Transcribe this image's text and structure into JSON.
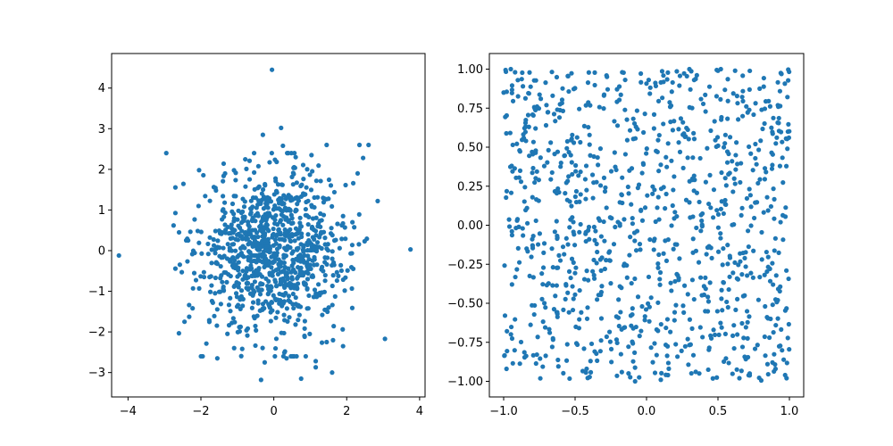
{
  "chart_data": [
    {
      "type": "scatter",
      "title": "",
      "xlabel": "",
      "ylabel": "",
      "xlim": [
        -4.45,
        4.15
      ],
      "ylim": [
        -3.6,
        4.85
      ],
      "xticks": [
        -4,
        -2,
        0,
        2,
        4
      ],
      "xtick_labels": [
        "−4",
        "−2",
        "0",
        "2",
        "4"
      ],
      "yticks": [
        -3,
        -2,
        -1,
        0,
        1,
        2,
        3,
        4
      ],
      "ytick_labels": [
        "−3",
        "−2",
        "−1",
        "0",
        "1",
        "2",
        "3",
        "4"
      ],
      "grid": false,
      "color": "#1f77b4",
      "distribution": "normal",
      "sample_size": 1000,
      "series": [
        {
          "x": [
            -0.05,
            -4.25,
            3.75,
            -2.95,
            0.2,
            -0.3,
            3.05,
            2.85,
            2.35,
            2.6,
            0.25,
            -0.35,
            0.75,
            1.9,
            2.45,
            -2.75,
            -2.6,
            -2.35,
            1.6,
            1.9,
            0.35,
            1.15,
            2.3,
            1.45,
            -0.25,
            0.6,
            1.45,
            1.15,
            -1.55,
            -2.05,
            -2.45
          ],
          "y": [
            4.45,
            -0.12,
            0.03,
            2.4,
            3.02,
            2.85,
            -2.17,
            1.22,
            2.6,
            2.6,
            2.58,
            -3.18,
            -3.15,
            -2.35,
            2.28,
            0.62,
            0.45,
            0.25,
            -3.0,
            0.85,
            -2.65,
            -2.72,
            1.9,
            -2.25,
            -2.75,
            2.3,
            2.6,
            -2.87,
            -2.65,
            1.98,
            -1.75
          ]
        }
      ]
    },
    {
      "type": "scatter",
      "title": "",
      "xlabel": "",
      "ylabel": "",
      "xlim": [
        -1.1,
        1.1
      ],
      "ylim": [
        -1.1,
        1.1
      ],
      "xticks": [
        -1.0,
        -0.5,
        0.0,
        0.5,
        1.0
      ],
      "xtick_labels": [
        "−1.0",
        "−0.5",
        "0.0",
        "0.5",
        "1.0"
      ],
      "yticks": [
        -1.0,
        -0.75,
        -0.5,
        -0.25,
        0.0,
        0.25,
        0.5,
        0.75,
        1.0
      ],
      "ytick_labels": [
        "−1.00",
        "−0.75",
        "−0.50",
        "−0.25",
        "0.00",
        "0.25",
        "0.50",
        "0.75",
        "1.00"
      ],
      "grid": false,
      "color": "#1f77b4",
      "distribution": "uniform",
      "sample_size": 1000,
      "series": [
        {
          "x": [
            -0.95,
            -0.92,
            0.3,
            0.5,
            0.52,
            0.62,
            -0.08,
            0.98,
            0.97,
            -1.0,
            -0.98,
            0.1,
            0.15,
            0.65
          ],
          "y": [
            1.0,
            0.98,
            1.0,
            0.99,
            1.0,
            0.99,
            -1.0,
            -0.98,
            -0.96,
            0.85,
            -0.92,
            -0.99,
            -0.96,
            -0.98
          ]
        }
      ]
    }
  ]
}
